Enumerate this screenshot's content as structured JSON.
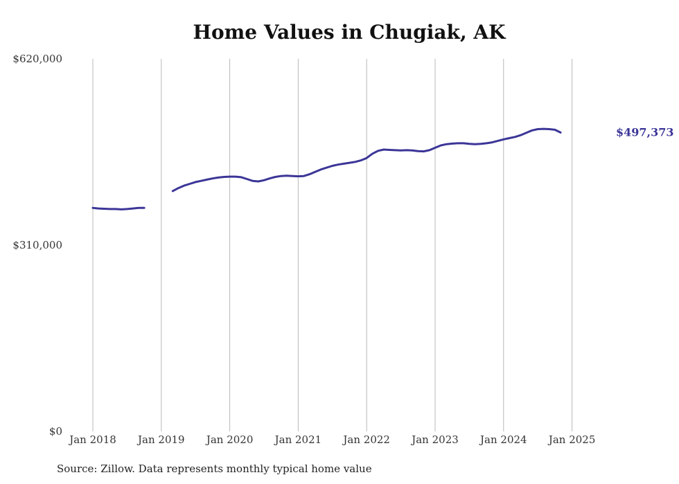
{
  "chart_data": {
    "type": "line",
    "title": "Home Values in Chugiak, AK",
    "source": "Source: Zillow. Data represents monthly typical home value",
    "y_ticks": [
      "$0",
      "$310,000",
      "$620,000"
    ],
    "y_tick_values": [
      0,
      310000,
      620000
    ],
    "ylim": [
      0,
      620000
    ],
    "x_ticks": [
      "Jan 2018",
      "Jan 2019",
      "Jan 2020",
      "Jan 2021",
      "Jan 2022",
      "Jan 2023",
      "Jan 2024",
      "Jan 2025"
    ],
    "x_tick_values": [
      "2018-01",
      "2019-01",
      "2020-01",
      "2021-01",
      "2022-01",
      "2023-01",
      "2024-01",
      "2025-01"
    ],
    "xlim": [
      "2018-01",
      "2025-07"
    ],
    "grid": "vertical",
    "line_color": "#3b3597",
    "end_label": "$497,373",
    "series": [
      {
        "segments": [
          [
            [
              "2018-01",
              372000
            ],
            [
              "2018-02",
              371000
            ],
            [
              "2018-03",
              370500
            ],
            [
              "2018-04",
              370000
            ],
            [
              "2018-05",
              370000
            ],
            [
              "2018-06",
              369500
            ],
            [
              "2018-07",
              370000
            ],
            [
              "2018-08",
              371000
            ],
            [
              "2018-09",
              372000
            ],
            [
              "2018-10",
              372000
            ]
          ],
          [
            [
              "2019-03",
              400000
            ],
            [
              "2019-04",
              405000
            ],
            [
              "2019-05",
              409000
            ],
            [
              "2019-06",
              412000
            ],
            [
              "2019-07",
              415000
            ],
            [
              "2019-08",
              417000
            ],
            [
              "2019-09",
              419000
            ],
            [
              "2019-10",
              421000
            ],
            [
              "2019-11",
              422500
            ],
            [
              "2019-12",
              423500
            ],
            [
              "2020-01",
              424000
            ],
            [
              "2020-02",
              424000
            ],
            [
              "2020-03",
              423000
            ],
            [
              "2020-04",
              420000
            ],
            [
              "2020-05",
              417000
            ],
            [
              "2020-06",
              416000
            ],
            [
              "2020-07",
              418000
            ],
            [
              "2020-08",
              421000
            ],
            [
              "2020-09",
              423500
            ],
            [
              "2020-10",
              425000
            ],
            [
              "2020-11",
              425500
            ],
            [
              "2020-12",
              425000
            ],
            [
              "2021-01",
              424500
            ],
            [
              "2021-02",
              425000
            ],
            [
              "2021-03",
              428000
            ],
            [
              "2021-04",
              432000
            ],
            [
              "2021-05",
              436000
            ],
            [
              "2021-06",
              439000
            ],
            [
              "2021-07",
              442000
            ],
            [
              "2021-08",
              444000
            ],
            [
              "2021-09",
              445500
            ],
            [
              "2021-10",
              447000
            ],
            [
              "2021-11",
              448500
            ],
            [
              "2021-12",
              451000
            ],
            [
              "2022-01",
              455000
            ],
            [
              "2022-02",
              462000
            ],
            [
              "2022-03",
              467000
            ],
            [
              "2022-04",
              469000
            ],
            [
              "2022-05",
              468500
            ],
            [
              "2022-06",
              468000
            ],
            [
              "2022-07",
              467500
            ],
            [
              "2022-08",
              468000
            ],
            [
              "2022-09",
              467500
            ],
            [
              "2022-10",
              466500
            ],
            [
              "2022-11",
              466000
            ],
            [
              "2022-12",
              468000
            ],
            [
              "2023-01",
              472000
            ],
            [
              "2023-02",
              476000
            ],
            [
              "2023-03",
              478000
            ],
            [
              "2023-04",
              479000
            ],
            [
              "2023-05",
              479500
            ],
            [
              "2023-06",
              479500
            ],
            [
              "2023-07",
              478500
            ],
            [
              "2023-08",
              478000
            ],
            [
              "2023-09",
              478500
            ],
            [
              "2023-10",
              479500
            ],
            [
              "2023-11",
              481000
            ],
            [
              "2023-12",
              483500
            ],
            [
              "2024-01",
              486000
            ],
            [
              "2024-02",
              488000
            ],
            [
              "2024-03",
              490000
            ],
            [
              "2024-04",
              493000
            ],
            [
              "2024-05",
              497000
            ],
            [
              "2024-06",
              501000
            ],
            [
              "2024-07",
              503000
            ],
            [
              "2024-08",
              503500
            ],
            [
              "2024-09",
              503000
            ],
            [
              "2024-10",
              502000
            ],
            [
              "2024-11",
              497373
            ]
          ]
        ]
      }
    ]
  }
}
